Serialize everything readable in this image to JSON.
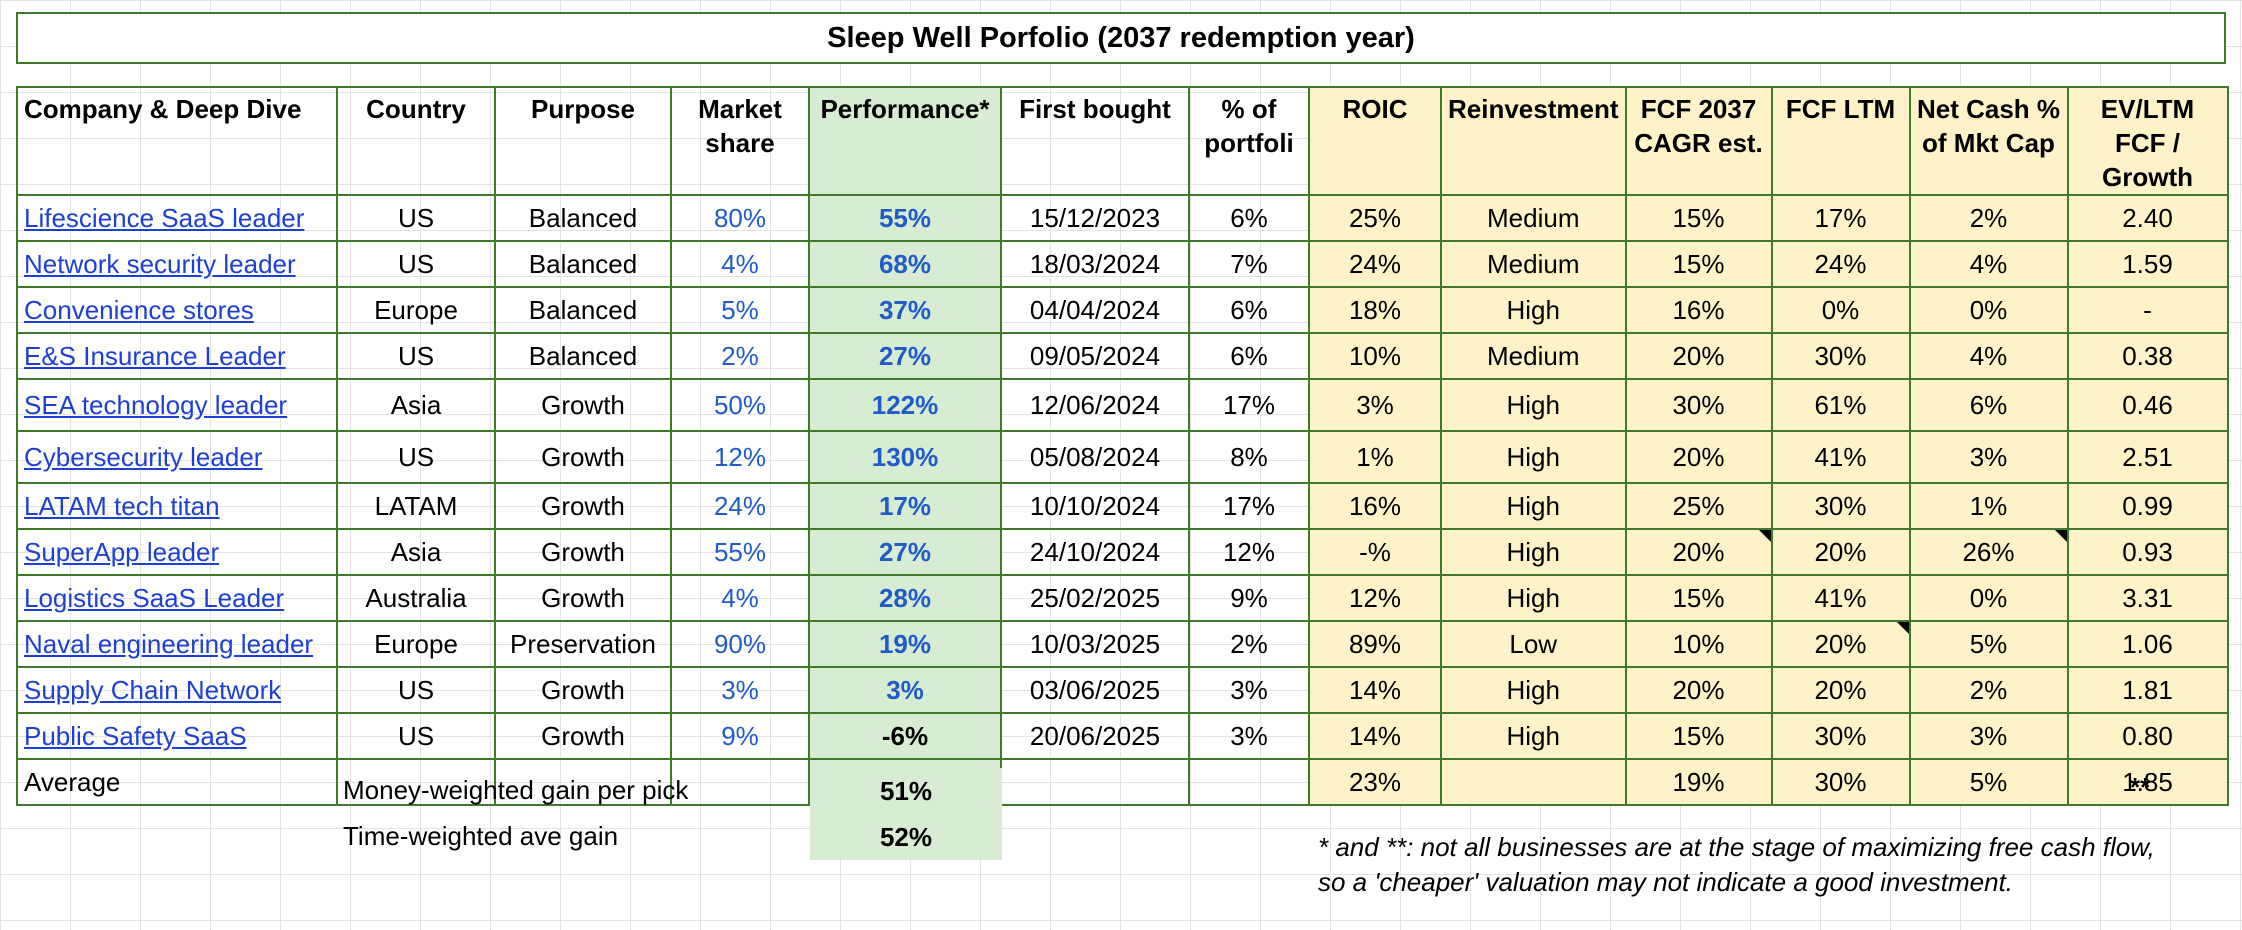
{
  "title": "Sleep Well Porfolio (2037 redemption year)",
  "headers": {
    "company": "Company & Deep Dive",
    "country": "Country",
    "purpose": "Purpose",
    "market_share": "Market share",
    "performance": "Performance*",
    "first_bought": "First bought",
    "pct_portfolio": "% of portfoli",
    "roic": "ROIC",
    "reinvestment": "Reinvestment",
    "fcf_cagr": "FCF 2037 CAGR est.",
    "fcf_ltm": "FCF LTM",
    "net_cash": "Net Cash % of Mkt Cap",
    "ev_fcf": "EV/LTM FCF / Growth"
  },
  "rows": [
    {
      "company": "Lifescience SaaS leader",
      "country": "US",
      "purpose": "Balanced",
      "market_share": "80%",
      "performance": "55%",
      "first_bought": "15/12/2023",
      "pct": "6%",
      "roic": "25%",
      "reinvestment": "Medium",
      "fcf_cagr": "15%",
      "fcf_ltm": "17%",
      "net_cash": "2%",
      "ev_fcf": "2.40"
    },
    {
      "company": "Network security leader",
      "country": "US",
      "purpose": "Balanced",
      "market_share": "4%",
      "performance": "68%",
      "first_bought": "18/03/2024",
      "pct": "7%",
      "roic": "24%",
      "reinvestment": "Medium",
      "fcf_cagr": "15%",
      "fcf_ltm": "24%",
      "net_cash": "4%",
      "ev_fcf": "1.59"
    },
    {
      "company": "Convenience stores",
      "country": "Europe",
      "purpose": "Balanced",
      "market_share": "5%",
      "performance": "37%",
      "first_bought": "04/04/2024",
      "pct": "6%",
      "roic": "18%",
      "reinvestment": "High",
      "fcf_cagr": "16%",
      "fcf_ltm": "0%",
      "net_cash": "0%",
      "ev_fcf": "-"
    },
    {
      "company": "E&S Insurance Leader",
      "country": "US",
      "purpose": "Balanced",
      "market_share": "2%",
      "performance": "27%",
      "first_bought": "09/05/2024",
      "pct": "6%",
      "roic": "10%",
      "reinvestment": "Medium",
      "fcf_cagr": "20%",
      "fcf_ltm": "30%",
      "net_cash": "4%",
      "ev_fcf": "0.38"
    },
    {
      "company": "SEA technology leader",
      "country": "Asia",
      "purpose": "Growth",
      "market_share": "50%",
      "performance": "122%",
      "first_bought": "12/06/2024",
      "pct": "17%",
      "roic": "3%",
      "reinvestment": "High",
      "fcf_cagr": "30%",
      "fcf_ltm": "61%",
      "net_cash": "6%",
      "ev_fcf": "0.46"
    },
    {
      "company": "Cybersecurity leader",
      "country": "US",
      "purpose": "Growth",
      "market_share": "12%",
      "performance": "130%",
      "first_bought": "05/08/2024",
      "pct": "8%",
      "roic": "1%",
      "reinvestment": "High",
      "fcf_cagr": "20%",
      "fcf_ltm": "41%",
      "net_cash": "3%",
      "ev_fcf": "2.51"
    },
    {
      "company": "LATAM tech titan",
      "country": "LATAM",
      "purpose": "Growth",
      "market_share": "24%",
      "performance": "17%",
      "first_bought": "10/10/2024",
      "pct": "17%",
      "roic": "16%",
      "reinvestment": "High",
      "fcf_cagr": "25%",
      "fcf_ltm": "30%",
      "net_cash": "1%",
      "ev_fcf": "0.99"
    },
    {
      "company": "SuperApp leader",
      "country": "Asia",
      "purpose": "Growth",
      "market_share": "55%",
      "performance": "27%",
      "first_bought": "24/10/2024",
      "pct": "12%",
      "roic": "-%",
      "reinvestment": "High",
      "fcf_cagr": "20%",
      "fcf_ltm": "20%",
      "net_cash": "26%",
      "ev_fcf": "0.93"
    },
    {
      "company": "Logistics SaaS Leader",
      "country": "Australia",
      "purpose": "Growth",
      "market_share": "4%",
      "performance": "28%",
      "first_bought": "25/02/2025",
      "pct": "9%",
      "roic": "12%",
      "reinvestment": "High",
      "fcf_cagr": "15%",
      "fcf_ltm": "41%",
      "net_cash": "0%",
      "ev_fcf": "3.31"
    },
    {
      "company": "Naval engineering leader",
      "country": "Europe",
      "purpose": "Preservation",
      "market_share": "90%",
      "performance": "19%",
      "first_bought": "10/03/2025",
      "pct": "2%",
      "roic": "89%",
      "reinvestment": "Low",
      "fcf_cagr": "10%",
      "fcf_ltm": "20%",
      "net_cash": "5%",
      "ev_fcf": "1.06"
    },
    {
      "company": "Supply Chain Network",
      "country": "US",
      "purpose": "Growth",
      "market_share": "3%",
      "performance": "3%",
      "first_bought": "03/06/2025",
      "pct": "3%",
      "roic": "14%",
      "reinvestment": "High",
      "fcf_cagr": "20%",
      "fcf_ltm": "20%",
      "net_cash": "2%",
      "ev_fcf": "1.81"
    },
    {
      "company": "Public Safety SaaS",
      "country": "US",
      "purpose": "Growth",
      "market_share": "9%",
      "performance": "-6%",
      "first_bought": "20/06/2025",
      "pct": "3%",
      "roic": "14%",
      "reinvestment": "High",
      "fcf_cagr": "15%",
      "fcf_ltm": "30%",
      "net_cash": "3%",
      "ev_fcf": "0.80"
    }
  ],
  "average": {
    "label": "Average",
    "roic": "23%",
    "fcf_cagr": "19%",
    "fcf_ltm": "30%",
    "net_cash": "5%",
    "ev_fcf": "1.85"
  },
  "summary": {
    "money_weighted_label": "Money-weighted gain per pick",
    "money_weighted_value": "51%",
    "time_weighted_label": "Time-weighted ave gain",
    "time_weighted_value": "52%",
    "double_star": "**"
  },
  "footnote": {
    "line1": "* and **: not all businesses are at the stage of maximizing free cash flow,",
    "line2": "so a 'cheaper' valuation may not indicate a good investment."
  },
  "colors": {
    "border": "#3f7a2b",
    "performance_bg": "#d8ecd3",
    "metrics_bg": "#fdf2c8",
    "link": "#1e3fd6",
    "value_blue": "#1f5bc9"
  }
}
